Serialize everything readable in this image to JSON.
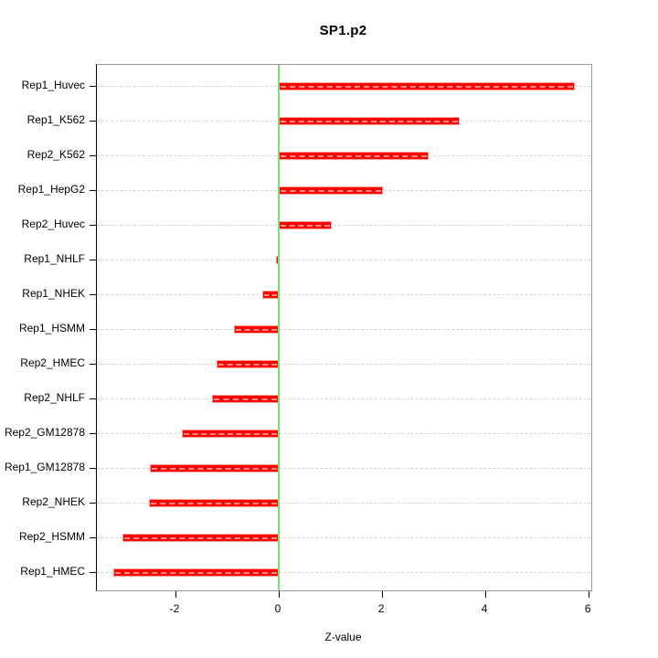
{
  "chart_data": {
    "type": "bar",
    "orientation": "horizontal",
    "title": "SP1.p2",
    "xlabel": "Z-value",
    "ylabel": "",
    "categories": [
      "Rep1_Huvec",
      "Rep1_K562",
      "Rep2_K562",
      "Rep1_HepG2",
      "Rep2_Huvec",
      "Rep1_NHLF",
      "Rep1_NHEK",
      "Rep1_HSMM",
      "Rep2_HMEC",
      "Rep2_NHLF",
      "Rep2_GM12878",
      "Rep1_GM12878",
      "Rep2_NHEK",
      "Rep2_HSMM",
      "Rep1_HMEC"
    ],
    "values": [
      5.73,
      3.5,
      2.9,
      2.01,
      1.02,
      -0.06,
      -0.32,
      -0.86,
      -1.2,
      -1.29,
      -1.88,
      -2.49,
      -2.52,
      -3.02,
      -3.2
    ],
    "xticks": [
      -2,
      0,
      2,
      4,
      6
    ],
    "xlim": [
      -3.52,
      6.05
    ],
    "grid": "dashed horizontal line per category",
    "zero_line_x": 0,
    "legend": "none",
    "colors": {
      "bar": "#ff0000",
      "bar_edge": "#ff9d9d",
      "bar_dash": "rgba(255,255,255,0.55)",
      "zero_line": "#77e077",
      "grid": "#d4d4d4",
      "box_border": "#9a9a9a",
      "axis": "#000000",
      "text": "#000000",
      "background": "#ffffff"
    }
  }
}
